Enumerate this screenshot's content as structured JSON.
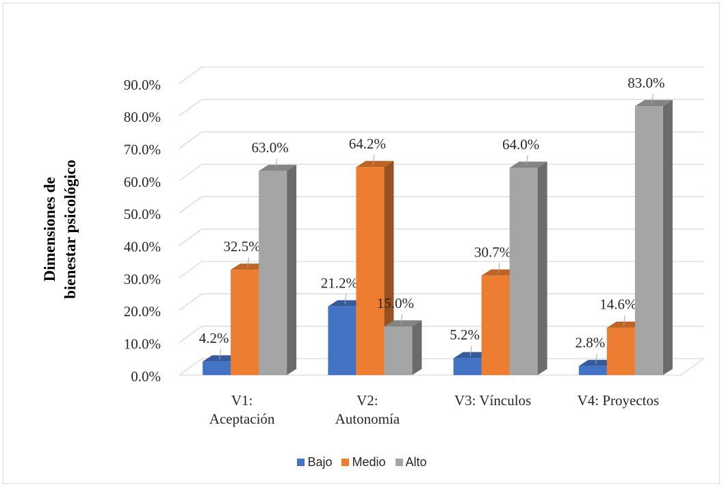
{
  "chart_data": {
    "type": "bar3d",
    "y_label": "Dimensiones de\nbienestar psicológico",
    "categories": [
      "V1:\nAceptación",
      "V2:\nAutonomía",
      "V3: Vínculos",
      "V4: Proyectos"
    ],
    "series": [
      {
        "name": "Bajo",
        "color": "#4472c4",
        "values": [
          4.2,
          21.2,
          5.2,
          2.8
        ],
        "value_labels": [
          "4.2%",
          "21.2%",
          "5.2%",
          "2.8%"
        ]
      },
      {
        "name": "Medio",
        "color": "#ed7d31",
        "values": [
          32.5,
          64.2,
          30.7,
          14.6
        ],
        "value_labels": [
          "32.5%",
          "64.2%",
          "30.7%",
          "14.6%"
        ]
      },
      {
        "name": "Alto",
        "color": "#a5a5a5",
        "values": [
          63.0,
          15.0,
          64.0,
          83.0
        ],
        "value_labels": [
          "63.0%",
          "15.0%",
          "64.0%",
          "83.0%"
        ]
      }
    ],
    "ylim": [
      0,
      90
    ],
    "yticks": [
      {
        "value": 0,
        "label": "0.0%"
      },
      {
        "value": 10,
        "label": "10.0%"
      },
      {
        "value": 20,
        "label": "20.0%"
      },
      {
        "value": 30,
        "label": "30.0%"
      },
      {
        "value": 40,
        "label": "40.0%"
      },
      {
        "value": 50,
        "label": "50.0%"
      },
      {
        "value": 60,
        "label": "60.0%"
      },
      {
        "value": 70,
        "label": "70.0%"
      },
      {
        "value": 80,
        "label": "80.0%"
      },
      {
        "value": 90,
        "label": "90.0%"
      }
    ],
    "grid": true,
    "legend": "bottom"
  }
}
